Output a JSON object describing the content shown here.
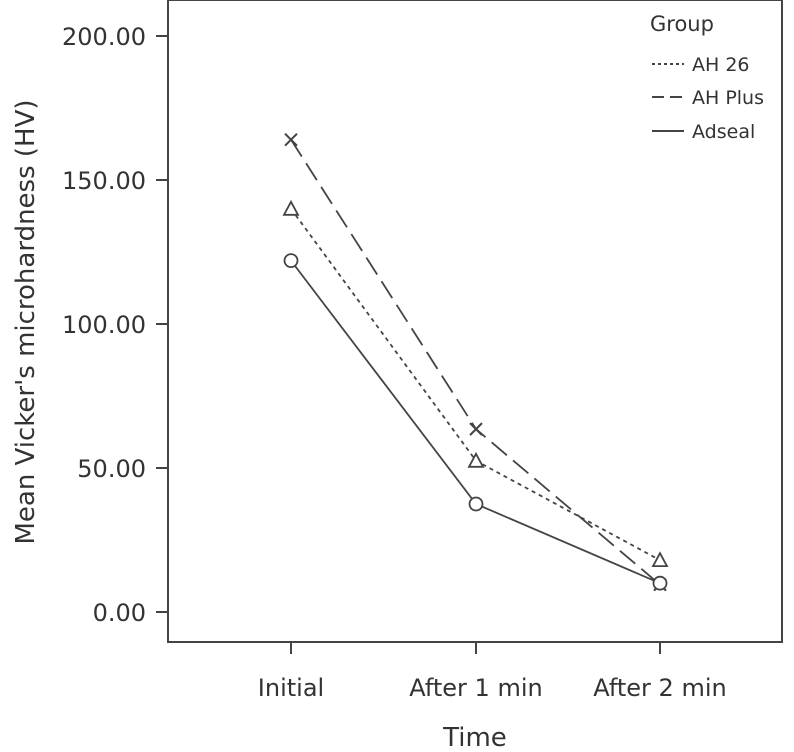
{
  "chart_data": {
    "type": "line",
    "categories": [
      "Initial",
      "After 1 min",
      "After 2 min"
    ],
    "xlabel": "Time",
    "ylabel": "Mean Vicker's microhardness (HV)",
    "ylim": [
      0,
      200
    ],
    "yticks": [
      "0.00",
      "50.00",
      "100.00",
      "150.00",
      "200.00"
    ],
    "grid": false,
    "legend": {
      "title": "Group",
      "position": "top-right"
    },
    "series": [
      {
        "name": "AH 26",
        "values": [
          140,
          52.5,
          18
        ],
        "marker": "triangle",
        "line_style": "dotted"
      },
      {
        "name": "AH Plus",
        "values": [
          164,
          63.5,
          9.5
        ],
        "marker": "x",
        "line_style": "long-dash"
      },
      {
        "name": "Adseal",
        "values": [
          122,
          37.5,
          10
        ],
        "marker": "circle",
        "line_style": "solid"
      }
    ],
    "colors": {
      "line": "#444444",
      "frame": "#444444"
    }
  }
}
